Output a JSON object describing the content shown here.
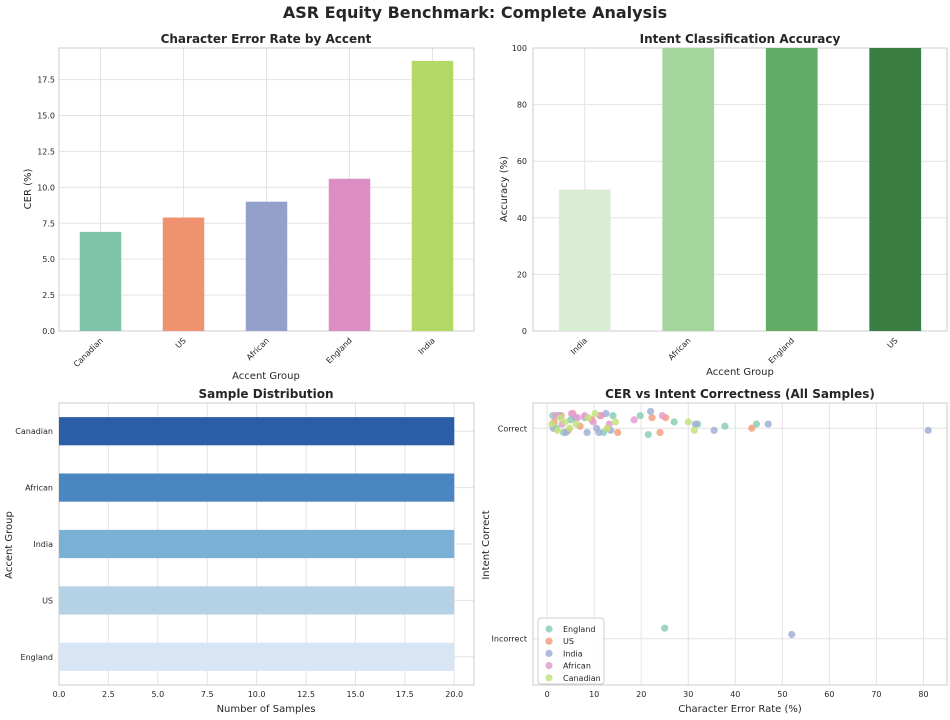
{
  "suptitle": "ASR Equity Benchmark: Complete Analysis",
  "chart_data": [
    {
      "type": "bar",
      "title": "Character Error Rate by Accent",
      "categories": [
        "Canadian",
        "US",
        "African",
        "England",
        "India"
      ],
      "values": [
        6.9,
        7.9,
        9.0,
        10.6,
        18.8
      ],
      "colors": [
        "#7fc3a8",
        "#ef9270",
        "#93a1ca",
        "#dc8dc3",
        "#b3d866"
      ],
      "xlabel": "Accent Group",
      "ylabel": "CER (%)",
      "ylim": [
        0,
        19.7
      ],
      "yticks": [
        "0.0",
        "2.5",
        "5.0",
        "7.5",
        "10.0",
        "12.5",
        "15.0",
        "17.5"
      ],
      "ytick_values": [
        0,
        2.5,
        5,
        7.5,
        10,
        12.5,
        15,
        17.5
      ]
    },
    {
      "type": "bar",
      "title": "Intent Classification Accuracy",
      "categories": [
        "India",
        "African",
        "England",
        "US"
      ],
      "values": [
        50,
        100,
        100,
        100
      ],
      "colors": [
        "#d8edd4",
        "#a3d59d",
        "#62ac66",
        "#3b7e42"
      ],
      "xlabel": "Accent Group",
      "ylabel": "Accuracy (%)",
      "ylim": [
        0,
        100
      ],
      "yticks": [
        "0",
        "20",
        "40",
        "60",
        "80",
        "100"
      ],
      "ytick_values": [
        0,
        20,
        40,
        60,
        80,
        100
      ]
    },
    {
      "type": "barh",
      "title": "Sample Distribution",
      "categories": [
        "Canadian",
        "African",
        "India",
        "US",
        "England"
      ],
      "values": [
        20,
        20,
        20,
        20,
        20
      ],
      "colors": [
        "#2b5ea6",
        "#4a86c2",
        "#7aafd6",
        "#b5d1e6",
        "#d8e5f4"
      ],
      "xlabel": "Number of Samples",
      "ylabel": "Accent Group",
      "xlim": [
        0,
        21
      ],
      "xticks": [
        "0.0",
        "2.5",
        "5.0",
        "7.5",
        "10.0",
        "12.5",
        "15.0",
        "17.5",
        "20.0"
      ],
      "xtick_values": [
        0,
        2.5,
        5,
        7.5,
        10,
        12.5,
        15,
        17.5,
        20
      ]
    },
    {
      "type": "scatter",
      "title": "CER vs Intent Correctness (All Samples)",
      "xlabel": "Character Error Rate (%)",
      "ylabel": "Intent Correct",
      "xlim": [
        -3,
        85
      ],
      "ylim": [
        -0.22,
        1.12
      ],
      "xticks": [
        "0",
        "10",
        "20",
        "30",
        "40",
        "50",
        "60",
        "70",
        "80"
      ],
      "xtick_values": [
        0,
        10,
        20,
        30,
        40,
        50,
        60,
        70,
        80
      ],
      "yticks": [
        "Incorrect",
        "Correct"
      ],
      "ytick_values": [
        0,
        1
      ],
      "legend_position": "lower-left",
      "series": [
        {
          "name": "England",
          "color": "#8ccfb5",
          "points": [
            [
              1.2,
              1.06
            ],
            [
              2,
              1.0
            ],
            [
              3.5,
              0.98
            ],
            [
              5,
              1.04
            ],
            [
              8,
              1.05
            ],
            [
              12,
              0.98
            ],
            [
              14,
              1.06
            ],
            [
              19.8,
              1.06
            ],
            [
              21.5,
              0.97
            ],
            [
              27,
              1.03
            ],
            [
              32,
              1.02
            ],
            [
              37.8,
              1.01
            ],
            [
              44.5,
              1.02
            ],
            [
              25,
              0.05
            ]
          ]
        },
        {
          "name": "US",
          "color": "#f2a07e",
          "points": [
            [
              1.5,
              1.03
            ],
            [
              3,
              1.06
            ],
            [
              4.5,
              0.99
            ],
            [
              5.5,
              1.07
            ],
            [
              7,
              1.01
            ],
            [
              9.5,
              1.04
            ],
            [
              11.5,
              1.06
            ],
            [
              13,
              1.0
            ],
            [
              15,
              0.98
            ],
            [
              22.3,
              1.05
            ],
            [
              25.2,
              1.05
            ],
            [
              43.5,
              1.0
            ],
            [
              24,
              0.98
            ]
          ]
        },
        {
          "name": "India",
          "color": "#a2b0d6",
          "points": [
            [
              1.3,
              1.0
            ],
            [
              2.5,
              1.06
            ],
            [
              4,
              0.98
            ],
            [
              6,
              1.05
            ],
            [
              8.5,
              0.98
            ],
            [
              10.5,
              1.0
            ],
            [
              11,
              0.98
            ],
            [
              12.5,
              1.07
            ],
            [
              13.5,
              0.99
            ],
            [
              22,
              1.08
            ],
            [
              31.5,
              1.02
            ],
            [
              35.5,
              0.99
            ],
            [
              47,
              1.02
            ],
            [
              81,
              0.99
            ],
            [
              52,
              0.02
            ]
          ]
        },
        {
          "name": "African",
          "color": "#e59ed0",
          "points": [
            [
              1.8,
              1.06
            ],
            [
              3.2,
              1.02
            ],
            [
              5.2,
              1.07
            ],
            [
              6.5,
              1.05
            ],
            [
              8,
              1.06
            ],
            [
              9.8,
              1.03
            ],
            [
              11.2,
              1.06
            ],
            [
              13.2,
              1.02
            ],
            [
              18.5,
              1.04
            ],
            [
              24.5,
              1.06
            ]
          ]
        },
        {
          "name": "Canadian",
          "color": "#c3e27f",
          "points": [
            [
              1,
              1.02
            ],
            [
              2.2,
              0.99
            ],
            [
              3.8,
              1.03
            ],
            [
              4.8,
              1.0
            ],
            [
              6.2,
              1.02
            ],
            [
              8.8,
              1.05
            ],
            [
              10.2,
              1.07
            ],
            [
              12.8,
              1.0
            ],
            [
              14.5,
              1.03
            ],
            [
              30,
              1.03
            ],
            [
              31.3,
              0.99
            ],
            [
              2.8,
              1.05
            ]
          ]
        }
      ]
    }
  ]
}
